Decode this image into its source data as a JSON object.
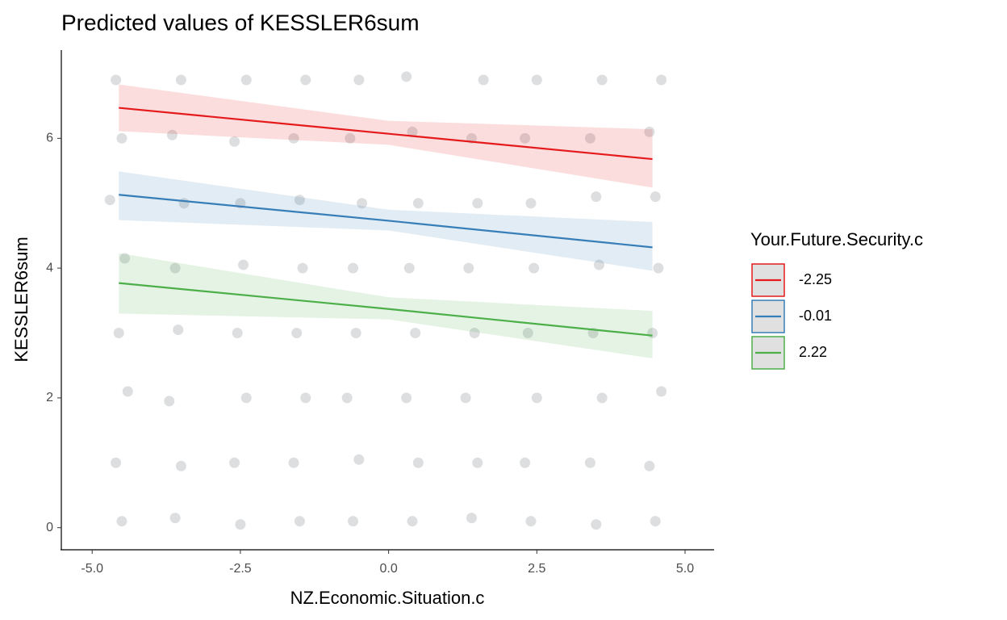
{
  "chart_data": {
    "type": "line",
    "title": "Predicted values of KESSLER6sum",
    "x_label": "NZ.Economic.Situation.c",
    "y_label": "KESSLER6sum",
    "legend_title": "Your.Future.Security.c",
    "legend_position": "right",
    "xlim": [
      -5.52,
      5.49
    ],
    "ylim": [
      -0.34,
      7.36
    ],
    "xticks": [
      {
        "value": -5,
        "label": "-5.0"
      },
      {
        "value": -2.5,
        "label": "-2.5"
      },
      {
        "value": 0,
        "label": "0.0"
      },
      {
        "value": 2.5,
        "label": "2.5"
      },
      {
        "value": 5,
        "label": "5.0"
      }
    ],
    "yticks": [
      0,
      2,
      4,
      6
    ],
    "grid": false,
    "x": [
      -4.55,
      0,
      4.45
    ],
    "series": [
      {
        "name": "-2.25",
        "color": "#e41a1c",
        "values": [
          6.47,
          6.07,
          5.68
        ],
        "lower": [
          6.11,
          5.9,
          5.24
        ],
        "upper": [
          6.83,
          6.27,
          6.14
        ]
      },
      {
        "name": "-0.01",
        "color": "#377eb8",
        "values": [
          5.13,
          4.73,
          4.32
        ],
        "lower": [
          4.74,
          4.58,
          3.96
        ],
        "upper": [
          5.49,
          4.9,
          4.71
        ]
      },
      {
        "name": "2.22",
        "color": "#4daf4a",
        "values": [
          3.77,
          3.37,
          2.96
        ],
        "lower": [
          3.3,
          3.21,
          2.61
        ],
        "upper": [
          4.23,
          3.55,
          3.34
        ]
      }
    ],
    "points": {
      "color": "#9aa0a6",
      "x": [
        -4.5,
        -4.6,
        -4.4,
        -4.55,
        -4.45,
        -4.7,
        -4.5,
        -4.6,
        -3.6,
        -3.5,
        -3.7,
        -3.55,
        -3.6,
        -3.45,
        -3.65,
        -3.5,
        -2.5,
        -2.6,
        -2.4,
        -2.55,
        -2.45,
        -2.5,
        -2.6,
        -2.4,
        -1.5,
        -1.6,
        -1.4,
        -1.55,
        -1.45,
        -1.5,
        -1.6,
        -1.4,
        -0.6,
        -0.5,
        -0.7,
        -0.55,
        -0.6,
        -0.45,
        -0.65,
        -0.5,
        0.4,
        0.5,
        0.3,
        0.45,
        0.35,
        0.5,
        0.4,
        0.3,
        1.4,
        1.5,
        1.3,
        1.45,
        1.35,
        1.5,
        1.4,
        1.6,
        2.4,
        2.3,
        2.5,
        2.35,
        2.45,
        2.4,
        2.3,
        2.5,
        3.5,
        3.4,
        3.6,
        3.45,
        3.55,
        3.5,
        3.4,
        3.6,
        4.5,
        4.4,
        4.6,
        4.45,
        4.55,
        4.5,
        4.4,
        4.6
      ],
      "y": [
        0.1,
        1.0,
        2.1,
        3.0,
        4.15,
        5.05,
        6.0,
        6.9,
        0.15,
        0.95,
        1.95,
        3.05,
        4.0,
        5.0,
        6.05,
        6.9,
        0.05,
        1.0,
        2.0,
        3.0,
        4.05,
        5.0,
        5.95,
        6.9,
        0.1,
        1.0,
        2.0,
        3.0,
        4.0,
        5.05,
        6.0,
        6.9,
        0.1,
        1.05,
        2.0,
        3.0,
        4.0,
        5.0,
        6.0,
        6.9,
        0.1,
        1.0,
        2.0,
        3.0,
        4.0,
        5.0,
        6.1,
        6.95,
        0.15,
        1.0,
        2.0,
        3.0,
        4.0,
        5.0,
        6.0,
        6.9,
        0.1,
        1.0,
        2.0,
        3.0,
        4.0,
        5.0,
        6.0,
        6.9,
        0.05,
        1.0,
        2.0,
        3.0,
        4.05,
        5.1,
        6.0,
        6.9,
        0.1,
        0.95,
        2.1,
        3.0,
        4.0,
        5.1,
        6.1,
        6.9
      ]
    }
  }
}
